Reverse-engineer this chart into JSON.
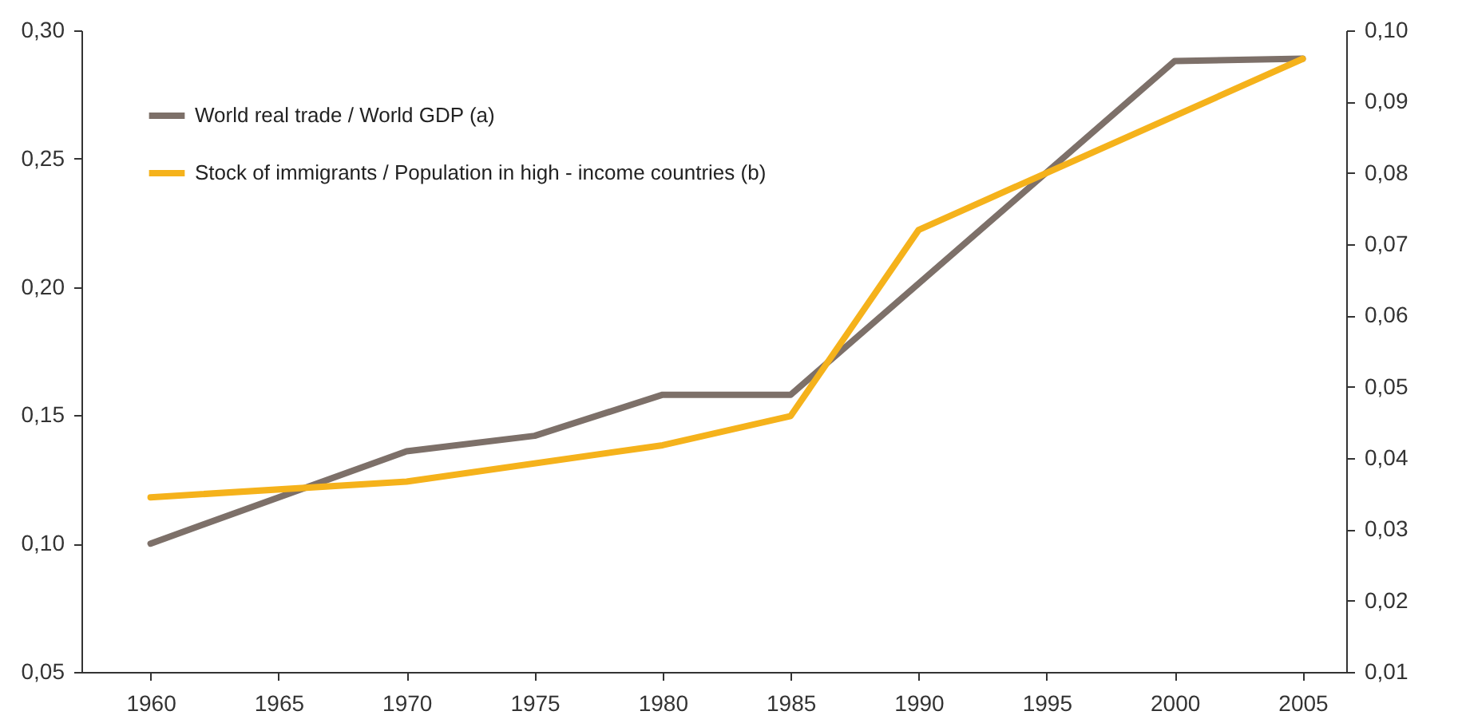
{
  "chart_data": {
    "type": "line",
    "xlim": [
      1957.3,
      2006.7
    ],
    "xticks": [
      1960,
      1965,
      1970,
      1975,
      1980,
      1985,
      1990,
      1995,
      2000,
      2005
    ],
    "ylim": [
      0.05,
      0.3
    ],
    "yticks": [
      {
        "value": 0.05,
        "label": "0,05"
      },
      {
        "value": 0.1,
        "label": "0,10"
      },
      {
        "value": 0.15,
        "label": "0,15"
      },
      {
        "value": 0.2,
        "label": "0,20"
      },
      {
        "value": 0.25,
        "label": "0,25"
      },
      {
        "value": 0.3,
        "label": "0,30"
      }
    ],
    "y2lim": [
      0.01,
      0.1
    ],
    "y2ticks": [
      {
        "value": 0.01,
        "label": "0,01"
      },
      {
        "value": 0.02,
        "label": "0,02"
      },
      {
        "value": 0.03,
        "label": "0,03"
      },
      {
        "value": 0.04,
        "label": "0,04"
      },
      {
        "value": 0.05,
        "label": "0,05"
      },
      {
        "value": 0.06,
        "label": "0,06"
      },
      {
        "value": 0.07,
        "label": "0,07"
      },
      {
        "value": 0.08,
        "label": "0,08"
      },
      {
        "value": 0.09,
        "label": "0,09"
      },
      {
        "value": 0.1,
        "label": "0,10"
      }
    ],
    "grid": false,
    "legend": "top left",
    "line_style": "solid",
    "series": [
      {
        "name": "World real trade / World GDP (a)",
        "color": "#7d7069",
        "x": [
          1960,
          1970,
          1975,
          1980,
          1985,
          2000,
          2005
        ],
        "values": [
          0.1,
          0.136,
          0.142,
          0.158,
          0.158,
          0.288,
          0.289
        ]
      },
      {
        "name": "Stock of immigrants / Population in high - income countries (b)",
        "color": "#f5b21b",
        "axis": "y2",
        "x": [
          1960,
          1970,
          1980,
          1985,
          1990,
          2005
        ],
        "values": [
          0.0345,
          0.0367,
          0.0418,
          0.0459,
          0.072,
          0.096
        ]
      }
    ]
  }
}
